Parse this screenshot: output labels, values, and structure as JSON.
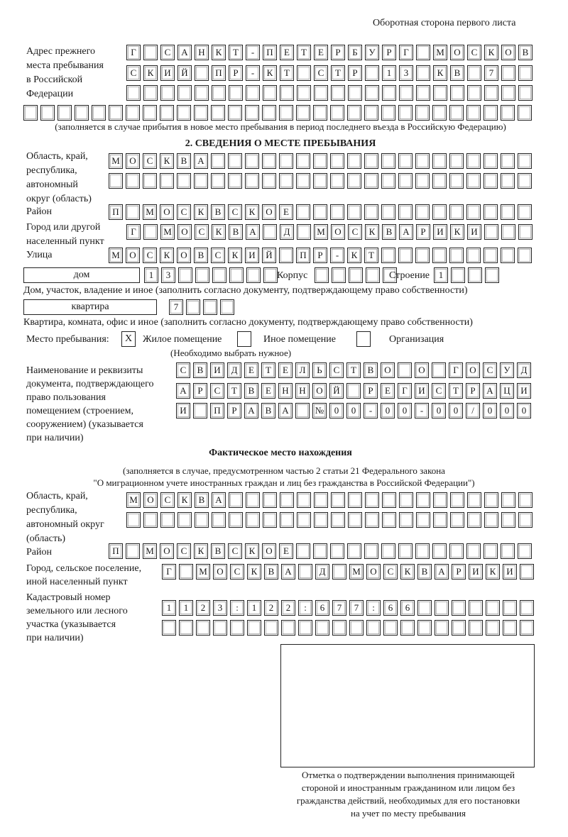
{
  "header": "Оборотная сторона первого листа",
  "prev_address": {
    "label": [
      "Адрес прежнего",
      "места пребывания",
      "в Российской",
      "Федерации"
    ],
    "rows": [
      "Г САНКТ-ПЕТЕРБУРГ МОСКОВ",
      "СКИЙ ПР-КТ СТР 13 КВ 7",
      "",
      ""
    ],
    "note": "(заполняется в случае прибытия в новое место пребывания в период последнего въезда в Российскую Федерацию)"
  },
  "section2": {
    "title": "2. СВЕДЕНИЯ О МЕСТЕ ПРЕБЫВАНИЯ",
    "region_label": [
      "Область, край,",
      "республика,",
      "автономный",
      "округ (область)"
    ],
    "region_rows": [
      "МОСКВА",
      ""
    ],
    "district_label": "Район",
    "district": "П МОСКВСКОЕ",
    "city_label": [
      "Город или другой",
      "населенный пункт"
    ],
    "city": "Г МОСКВА Д МОСКВАРИКИ",
    "street_label": "Улица",
    "street": "МОСКОВСКИЙ ПР-КТ",
    "house_type": "дом",
    "house": "13",
    "korpus_label": "Корпус",
    "korpus": "",
    "building_label": "Строение",
    "building": "1",
    "house_note": "Дом, участок, владение и иное (заполнить согласно документу, подтверждающему право собственности)",
    "flat_type": "квартира",
    "flat": "7",
    "flat_note": "Квартира, комната, офис и иное (заполнить согласно документу, подтверждающему право собственности)",
    "place_label": "Место пребывания:",
    "place_options": [
      {
        "label": "Жилое помещение",
        "mark": "X"
      },
      {
        "label": "Иное помещение",
        "mark": ""
      },
      {
        "label": "Организация",
        "mark": ""
      }
    ],
    "place_note": "(Необходимо выбрать нужное)",
    "doc_label": [
      "Наименование и реквизиты",
      "документа, подтверждающего",
      "право пользования",
      "помещением (строением,",
      "сооружением) (указывается",
      "при наличии)"
    ],
    "doc_rows": [
      "СВИДЕТЕЛЬСТВО О ГОСУД",
      "АРСТВЕННОЙ РЕГИСТРАЦИ",
      "И ПРАВА №00-00-00/000"
    ]
  },
  "actual": {
    "title": "Фактическое место нахождения",
    "note": [
      "(заполняется в случае, предусмотренном частью 2 статьи 21 Федерального закона",
      "\"О миграционном учете иностранных граждан и лиц без гражданства в Российской Федерации\")"
    ],
    "region_label": [
      "Область, край,",
      "республика,",
      "автономный округ",
      "(область)"
    ],
    "region_rows": [
      "МОСКВА",
      ""
    ],
    "district_label": "Район",
    "district": "П МОСКВСКОЕ",
    "city_label": [
      "Город, сельское поселение,",
      "иной населенный пункт"
    ],
    "city": "Г МОСКВА Д МОСКВАРИКИ",
    "cadastral_label": [
      "Кадастровый номер",
      "земельного или лесного",
      "участка (указывается",
      "при наличии)"
    ],
    "cadastral_rows": [
      "1123:122:677:66",
      ""
    ]
  },
  "stamp_caption": [
    "Отметка о подтверждении выполнения принимающей",
    "стороной и иностранным гражданином или лицом без",
    "гражданства действий, необходимых для его постановки",
    "на учет по месту пребывания"
  ]
}
